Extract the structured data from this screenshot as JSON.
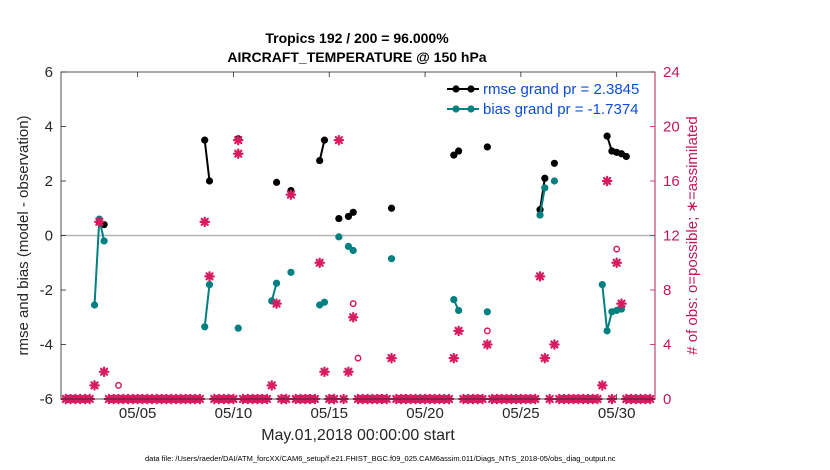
{
  "colors": {
    "rmse": "#000000",
    "bias": "#008080",
    "obs": "#d81b60",
    "legend_text": "#0b4ddb",
    "right_axis": "#c2185b",
    "zero_line": "#b3b3b3"
  },
  "chart_data": {
    "type": "line",
    "title": "Tropics 192 / 200 = 96.000%",
    "subtitle": "AIRCRAFT_TEMPERATURE @ 150 hPa",
    "xlabel": "May.01,2018 00:00:00 start",
    "ylabel": "rmse and bias (model - observation)",
    "ylabel_right": "# of obs: o=possible; ∗=assimilated",
    "footnote": "data file: /Users/raeder/DAI/ATM_forcXX/CAM6_setup/f.e21.FHIST_BGC.f09_025.CAM6assim.011/Diags_NTrS_2018-05/obs_diag_output.nc",
    "xlim": [
      1,
      32
    ],
    "x_ticks": [
      5,
      10,
      15,
      20,
      25,
      30
    ],
    "x_tick_labels": [
      "05/05",
      "05/10",
      "05/15",
      "05/20",
      "05/25",
      "05/30"
    ],
    "ylim": [
      -6,
      6
    ],
    "y_ticks": [
      -6,
      -4,
      -2,
      0,
      2,
      4,
      6
    ],
    "y_tick_labels": [
      "-6",
      "-4",
      "-2",
      "0",
      "2",
      "4",
      "6"
    ],
    "ylim_right": [
      0,
      24
    ],
    "y_ticks_right": [
      0,
      4,
      8,
      12,
      16,
      20,
      24
    ],
    "y_tick_labels_right": [
      "0",
      "4",
      "8",
      "12",
      "16",
      "20",
      "24"
    ],
    "legend": [
      {
        "name": "rmse",
        "label": "rmse grand pr = 2.3845"
      },
      {
        "name": "bias",
        "label": "bias grand pr = -1.7374"
      }
    ],
    "series": [
      {
        "name": "rmse",
        "axis": "left",
        "segments": [
          [
            [
              3.0,
              0.5
            ],
            [
              3.25,
              0.4
            ]
          ],
          [
            [
              8.5,
              3.5
            ],
            [
              8.75,
              2.0
            ]
          ],
          [
            [
              10.25,
              3.55
            ]
          ],
          [
            [
              12.25,
              1.95
            ]
          ],
          [
            [
              13.0,
              1.65
            ]
          ],
          [
            [
              14.5,
              2.75
            ],
            [
              14.75,
              3.5
            ]
          ],
          [
            [
              15.5,
              0.62
            ]
          ],
          [
            [
              16.0,
              0.7
            ],
            [
              16.25,
              0.85
            ]
          ],
          [
            [
              18.25,
              1.0
            ]
          ],
          [
            [
              21.5,
              2.95
            ],
            [
              21.75,
              3.1
            ]
          ],
          [
            [
              23.25,
              3.25
            ]
          ],
          [
            [
              26.0,
              0.95
            ],
            [
              26.25,
              2.1
            ]
          ],
          [
            [
              26.75,
              2.65
            ]
          ],
          [
            [
              29.5,
              3.65
            ],
            [
              29.75,
              3.1
            ],
            [
              30.0,
              3.05
            ],
            [
              30.25,
              3.0
            ],
            [
              30.5,
              2.9
            ]
          ]
        ]
      },
      {
        "name": "bias",
        "axis": "left",
        "segments": [
          [
            [
              2.75,
              -2.55
            ],
            [
              3.0,
              0.6
            ],
            [
              3.25,
              -0.2
            ]
          ],
          [
            [
              8.5,
              -3.35
            ],
            [
              8.75,
              -1.8
            ]
          ],
          [
            [
              10.25,
              -3.4
            ]
          ],
          [
            [
              12.0,
              -2.4
            ],
            [
              12.25,
              -1.75
            ]
          ],
          [
            [
              13.0,
              -1.35
            ]
          ],
          [
            [
              14.5,
              -2.55
            ],
            [
              14.75,
              -2.45
            ]
          ],
          [
            [
              15.5,
              -0.05
            ]
          ],
          [
            [
              16.0,
              -0.4
            ],
            [
              16.25,
              -0.55
            ]
          ],
          [
            [
              18.25,
              -0.85
            ]
          ],
          [
            [
              21.5,
              -2.35
            ],
            [
              21.75,
              -2.75
            ]
          ],
          [
            [
              23.25,
              -2.8
            ]
          ],
          [
            [
              26.0,
              0.75
            ],
            [
              26.25,
              1.75
            ]
          ],
          [
            [
              26.75,
              2.0
            ]
          ],
          [
            [
              29.25,
              -1.8
            ],
            [
              29.5,
              -3.5
            ],
            [
              29.75,
              -2.8
            ],
            [
              30.0,
              -2.75
            ],
            [
              30.25,
              -2.7
            ]
          ]
        ]
      },
      {
        "name": "possible",
        "axis": "right",
        "marker": "o",
        "points": [
          [
            4.0,
            1
          ],
          [
            16.25,
            7
          ],
          [
            16.5,
            3
          ],
          [
            23.25,
            5
          ],
          [
            30.0,
            11
          ]
        ]
      },
      {
        "name": "assimilated",
        "axis": "right",
        "marker": "*",
        "points": [
          [
            1.25,
            0
          ],
          [
            1.5,
            0
          ],
          [
            1.75,
            0
          ],
          [
            2.0,
            0
          ],
          [
            2.25,
            0
          ],
          [
            2.5,
            0
          ],
          [
            2.75,
            1
          ],
          [
            3.0,
            13
          ],
          [
            3.25,
            2
          ],
          [
            3.5,
            0
          ],
          [
            3.75,
            0
          ],
          [
            4.0,
            0
          ],
          [
            4.25,
            0
          ],
          [
            4.5,
            0
          ],
          [
            4.75,
            0
          ],
          [
            5.0,
            0
          ],
          [
            5.25,
            0
          ],
          [
            5.5,
            0
          ],
          [
            5.75,
            0
          ],
          [
            6.0,
            0
          ],
          [
            6.25,
            0
          ],
          [
            6.5,
            0
          ],
          [
            6.75,
            0
          ],
          [
            7.0,
            0
          ],
          [
            7.25,
            0
          ],
          [
            7.5,
            0
          ],
          [
            7.75,
            0
          ],
          [
            8.0,
            0
          ],
          [
            8.25,
            0
          ],
          [
            8.5,
            13
          ],
          [
            8.75,
            9
          ],
          [
            9.0,
            0
          ],
          [
            9.25,
            0
          ],
          [
            9.5,
            0
          ],
          [
            9.75,
            0
          ],
          [
            10.0,
            0
          ],
          [
            10.25,
            19
          ],
          [
            10.25,
            18
          ],
          [
            10.5,
            0
          ],
          [
            10.75,
            0
          ],
          [
            11.0,
            0
          ],
          [
            11.25,
            0
          ],
          [
            11.5,
            0
          ],
          [
            11.75,
            0
          ],
          [
            12.0,
            1
          ],
          [
            12.25,
            7
          ],
          [
            12.5,
            0
          ],
          [
            12.75,
            0
          ],
          [
            13.0,
            15
          ],
          [
            13.25,
            0
          ],
          [
            13.5,
            0
          ],
          [
            13.75,
            0
          ],
          [
            14.0,
            0
          ],
          [
            14.25,
            0
          ],
          [
            14.5,
            10
          ],
          [
            14.75,
            2
          ],
          [
            15.0,
            0
          ],
          [
            15.25,
            0
          ],
          [
            15.5,
            19
          ],
          [
            15.75,
            0
          ],
          [
            16.0,
            2
          ],
          [
            16.25,
            6
          ],
          [
            16.5,
            0
          ],
          [
            16.75,
            0
          ],
          [
            17.0,
            0
          ],
          [
            17.25,
            0
          ],
          [
            17.5,
            0
          ],
          [
            17.75,
            0
          ],
          [
            18.0,
            0
          ],
          [
            18.25,
            3
          ],
          [
            18.5,
            0
          ],
          [
            18.75,
            0
          ],
          [
            19.0,
            0
          ],
          [
            19.25,
            0
          ],
          [
            19.5,
            0
          ],
          [
            19.75,
            0
          ],
          [
            20.0,
            0
          ],
          [
            20.25,
            0
          ],
          [
            20.5,
            0
          ],
          [
            20.75,
            0
          ],
          [
            21.0,
            0
          ],
          [
            21.25,
            0
          ],
          [
            21.5,
            3
          ],
          [
            21.75,
            5
          ],
          [
            22.0,
            0
          ],
          [
            22.25,
            0
          ],
          [
            22.5,
            0
          ],
          [
            22.75,
            0
          ],
          [
            23.0,
            0
          ],
          [
            23.25,
            4
          ],
          [
            23.5,
            0
          ],
          [
            23.75,
            0
          ],
          [
            24.0,
            0
          ],
          [
            24.25,
            0
          ],
          [
            24.5,
            0
          ],
          [
            24.75,
            0
          ],
          [
            25.0,
            0
          ],
          [
            25.25,
            0
          ],
          [
            25.5,
            0
          ],
          [
            25.75,
            0
          ],
          [
            26.0,
            9
          ],
          [
            26.25,
            3
          ],
          [
            26.5,
            0
          ],
          [
            26.75,
            4
          ],
          [
            27.0,
            0
          ],
          [
            27.25,
            0
          ],
          [
            27.5,
            0
          ],
          [
            27.75,
            0
          ],
          [
            28.0,
            0
          ],
          [
            28.25,
            0
          ],
          [
            28.5,
            0
          ],
          [
            28.75,
            0
          ],
          [
            29.0,
            0
          ],
          [
            29.25,
            1
          ],
          [
            29.5,
            16
          ],
          [
            29.75,
            0
          ],
          [
            30.0,
            10
          ],
          [
            30.25,
            7
          ],
          [
            30.5,
            0
          ],
          [
            30.75,
            0
          ],
          [
            31.0,
            0
          ],
          [
            31.25,
            0
          ],
          [
            31.5,
            0
          ],
          [
            31.75,
            0
          ]
        ]
      }
    ]
  }
}
